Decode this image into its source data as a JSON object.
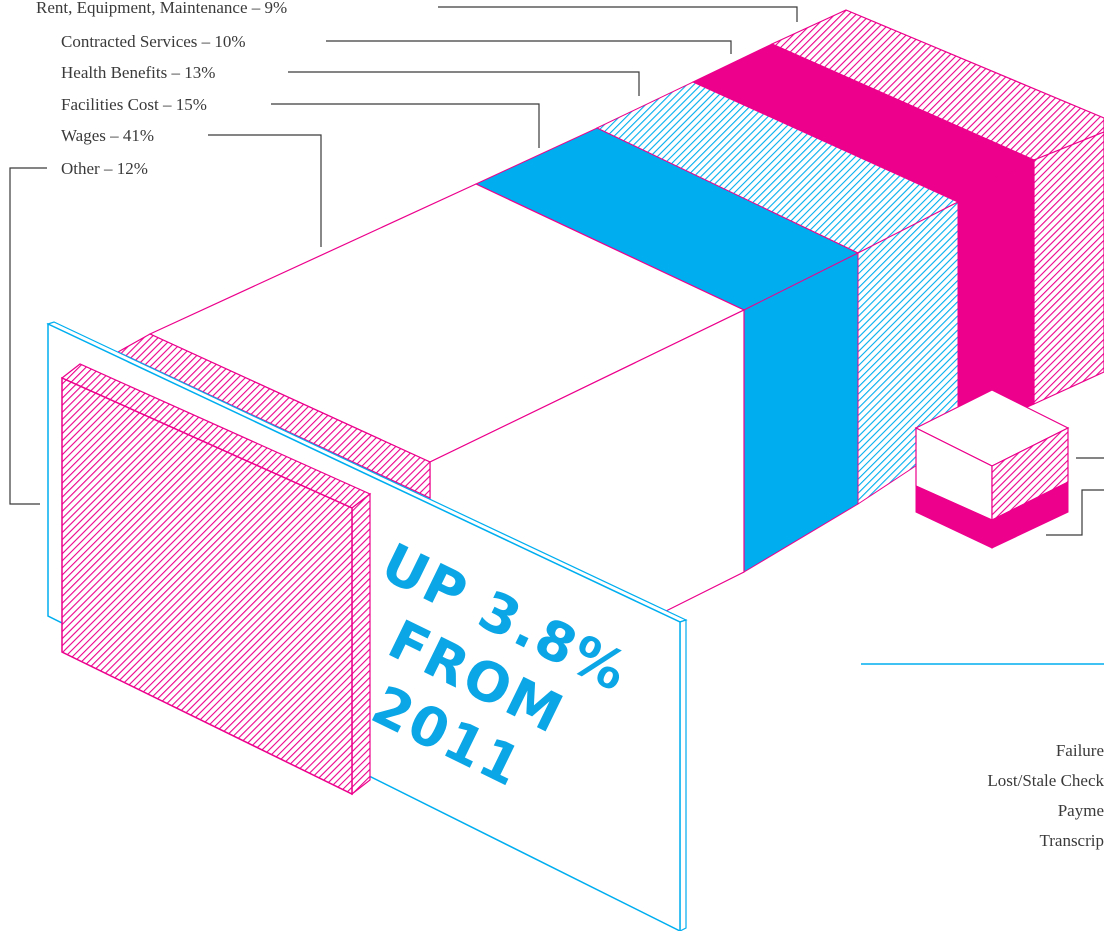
{
  "chart_data": {
    "type": "bar",
    "categories": [
      "Rent, Equipment, Maintenance",
      "Contracted Services",
      "Health Benefits",
      "Facilities Cost",
      "Wages",
      "Other"
    ],
    "values": [
      9,
      10,
      13,
      15,
      41,
      12
    ],
    "unit": "%",
    "labels": [
      "Rent, Equipment, Maintenance – 9%",
      "Contracted Services – 10%",
      "Health Benefits – 13%",
      "Facilities Cost – 15%",
      "Wages – 41%",
      "Other – 12%"
    ],
    "annotation": [
      "UP 3.8%",
      "FROM",
      "2011"
    ],
    "side_labels": [
      "Failure",
      "Lost/Stale Check",
      "Payme",
      "Transcrip"
    ]
  },
  "colors": {
    "magenta": "#ec008c",
    "cyan": "#00aeef",
    "text": "#3a3a3a",
    "annotation": "#0aa6e6"
  }
}
